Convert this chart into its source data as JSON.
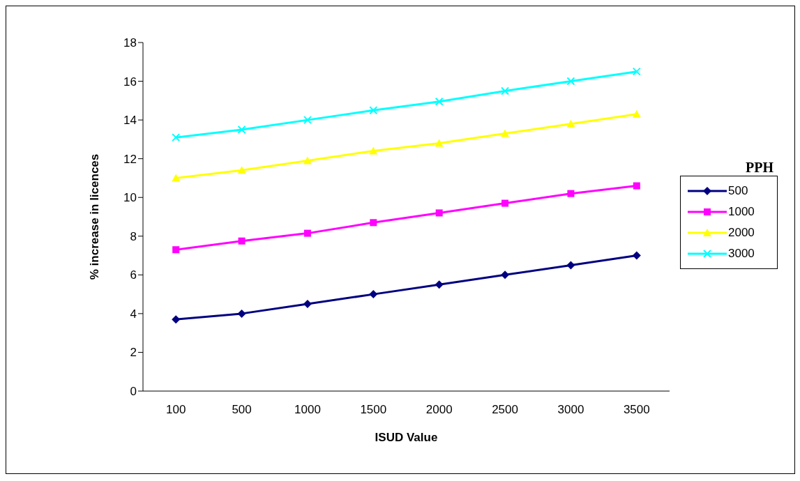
{
  "chart_data": {
    "type": "line",
    "xlabel": "ISUD Value",
    "ylabel": "% increase in licences",
    "legend_title": "PPH",
    "legend": "right",
    "grid": false,
    "categories": [
      "100",
      "500",
      "1000",
      "1500",
      "2000",
      "2500",
      "3000",
      "3500"
    ],
    "ylim": [
      0,
      18
    ],
    "yticks": [
      0,
      2,
      4,
      6,
      8,
      10,
      12,
      14,
      16,
      18
    ],
    "series": [
      {
        "name": "500",
        "color": "#000080",
        "marker": "diamond",
        "values": [
          3.7,
          4.0,
          4.5,
          5.0,
          5.5,
          6.0,
          6.5,
          7.0
        ]
      },
      {
        "name": "1000",
        "color": "#ff00ff",
        "marker": "square",
        "values": [
          7.3,
          7.75,
          8.15,
          8.7,
          9.2,
          9.7,
          10.2,
          10.6
        ]
      },
      {
        "name": "2000",
        "color": "#ffff00",
        "marker": "triangle",
        "values": [
          11.0,
          11.4,
          11.9,
          12.4,
          12.8,
          13.3,
          13.8,
          14.3
        ]
      },
      {
        "name": "3000",
        "color": "#00ffff",
        "marker": "cross",
        "values": [
          13.1,
          13.5,
          14.0,
          14.5,
          14.95,
          15.5,
          16.0,
          16.5
        ]
      }
    ]
  }
}
